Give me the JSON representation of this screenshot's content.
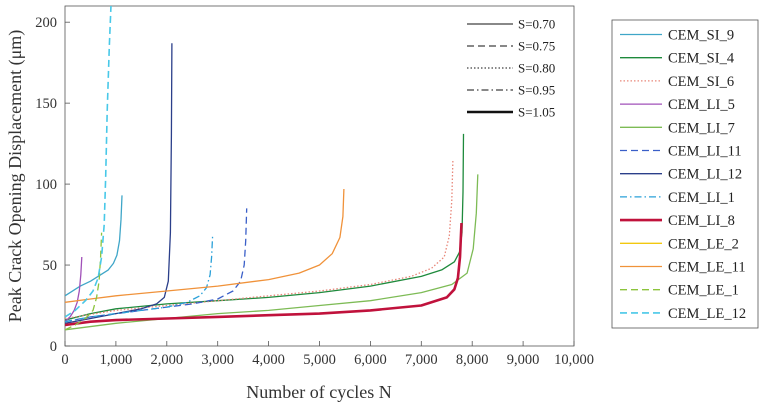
{
  "chart_data": {
    "type": "line",
    "xlabel": "Number of cycles N",
    "ylabel": "Peak Crack Opening Displacement (μm)",
    "xlim": [
      0,
      10000
    ],
    "ylim": [
      0,
      210
    ],
    "xticks": [
      0,
      1000,
      2000,
      3000,
      4000,
      5000,
      6000,
      7000,
      8000,
      9000,
      10000
    ],
    "xtick_labels": [
      "0",
      "1,000",
      "2,000",
      "3,000",
      "4,000",
      "5,000",
      "6,000",
      "7,000",
      "8,000",
      "9,000",
      "10,000"
    ],
    "yticks": [
      0,
      50,
      100,
      150,
      200
    ],
    "ytick_labels": [
      "0",
      "50",
      "100",
      "150",
      "200"
    ],
    "grid": false,
    "series": [
      {
        "name": "CEM_SI_9",
        "color": "#3fa6c8",
        "dash": "solid",
        "width": 1.3,
        "x": [
          0,
          100,
          300,
          500,
          700,
          850,
          950,
          1020,
          1070,
          1100,
          1120
        ],
        "y": [
          31,
          33,
          37,
          40,
          44,
          47,
          51,
          56,
          65,
          78,
          93
        ]
      },
      {
        "name": "CEM_SI_4",
        "color": "#1e8a3c",
        "dash": "solid",
        "width": 1.3,
        "x": [
          0,
          500,
          1000,
          2000,
          3000,
          4000,
          5000,
          6000,
          7000,
          7400,
          7650,
          7750,
          7800,
          7820,
          7830
        ],
        "y": [
          16,
          20,
          23,
          26,
          28,
          30,
          33,
          37,
          43,
          47,
          52,
          58,
          70,
          95,
          131
        ]
      },
      {
        "name": "CEM_SI_6",
        "color": "#e8877a",
        "dash": "dotted",
        "width": 1.3,
        "x": [
          0,
          1000,
          2000,
          3000,
          4000,
          5000,
          6000,
          6800,
          7200,
          7450,
          7550,
          7600,
          7620
        ],
        "y": [
          17,
          22,
          25,
          28,
          31,
          34,
          38,
          43,
          48,
          55,
          68,
          90,
          115
        ]
      },
      {
        "name": "CEM_LI_5",
        "color": "#a050b8",
        "dash": "solid",
        "width": 1.3,
        "x": [
          0,
          100,
          180,
          240,
          280,
          310,
          330
        ],
        "y": [
          15,
          18,
          22,
          27,
          34,
          44,
          55
        ]
      },
      {
        "name": "CEM_LI_7",
        "color": "#7dbb55",
        "dash": "solid",
        "width": 1.3,
        "x": [
          0,
          1000,
          2000,
          3000,
          4000,
          5000,
          6000,
          7000,
          7600,
          7900,
          8020,
          8080,
          8110
        ],
        "y": [
          10,
          14,
          17,
          20,
          22,
          25,
          28,
          33,
          38,
          45,
          60,
          82,
          106
        ]
      },
      {
        "name": "CEM_LI_11",
        "color": "#3a5fc8",
        "dash": "dashed",
        "width": 1.3,
        "x": [
          0,
          500,
          1000,
          1500,
          2000,
          2500,
          3000,
          3300,
          3450,
          3520,
          3550,
          3570
        ],
        "y": [
          15,
          18,
          20,
          22,
          24,
          26,
          29,
          34,
          40,
          50,
          65,
          85
        ]
      },
      {
        "name": "CEM_LI_12",
        "color": "#2b3f8a",
        "dash": "solid",
        "width": 1.3,
        "x": [
          0,
          500,
          1000,
          1500,
          1800,
          1950,
          2030,
          2070,
          2090,
          2100
        ],
        "y": [
          14,
          17,
          20,
          23,
          26,
          30,
          40,
          70,
          130,
          187
        ]
      },
      {
        "name": "CEM_LI_1",
        "color": "#2aa0d8",
        "dash": "dashdot",
        "width": 1.3,
        "x": [
          0,
          500,
          1000,
          1500,
          2000,
          2400,
          2650,
          2780,
          2850,
          2880,
          2900
        ],
        "y": [
          15,
          18,
          20,
          22,
          24,
          27,
          31,
          36,
          44,
          55,
          68
        ]
      },
      {
        "name": "CEM_LI_8",
        "color": "#c0123c",
        "dash": "solid",
        "width": 2.6,
        "x": [
          0,
          500,
          1000,
          2000,
          3000,
          4000,
          5000,
          6000,
          7000,
          7500,
          7650,
          7720,
          7760,
          7790
        ],
        "y": [
          13,
          15,
          16,
          17,
          18,
          19,
          20,
          22,
          25,
          30,
          35,
          42,
          55,
          76
        ]
      },
      {
        "name": "CEM_LE_2",
        "color": "#f2c80f",
        "dash": "solid",
        "width": 1.3,
        "x": [],
        "y": []
      },
      {
        "name": "CEM_LE_11",
        "color": "#f0923a",
        "dash": "solid",
        "width": 1.3,
        "x": [
          0,
          500,
          1000,
          2000,
          3000,
          4000,
          4600,
          5000,
          5250,
          5400,
          5460,
          5480
        ],
        "y": [
          27,
          29,
          31,
          34,
          37,
          41,
          45,
          50,
          57,
          67,
          80,
          97
        ]
      },
      {
        "name": "CEM_LE_1",
        "color": "#8cc43c",
        "dash": "dashed",
        "width": 1.3,
        "x": [
          0,
          200,
          400,
          550,
          620,
          670,
          700,
          720
        ],
        "y": [
          10,
          13,
          17,
          22,
          30,
          40,
          55,
          70
        ]
      },
      {
        "name": "CEM_LE_12",
        "color": "#48c8e8",
        "dash": "dashed",
        "width": 1.6,
        "x": [
          0,
          200,
          400,
          550,
          650,
          720,
          770,
          800,
          830,
          870,
          910
        ],
        "y": [
          18,
          22,
          28,
          34,
          42,
          55,
          75,
          105,
          145,
          185,
          215
        ]
      }
    ],
    "stress_legend": [
      {
        "label": "S=0.70",
        "dash": "solid",
        "width": 1.0
      },
      {
        "label": "S=0.75",
        "dash": "dashed",
        "width": 1.0
      },
      {
        "label": "S=0.80",
        "dash": "dotted",
        "width": 1.0
      },
      {
        "label": "S=0.95",
        "dash": "dashdot",
        "width": 1.0
      },
      {
        "label": "S=1.05",
        "dash": "solid",
        "width": 2.6
      }
    ],
    "legend_position": "right"
  }
}
